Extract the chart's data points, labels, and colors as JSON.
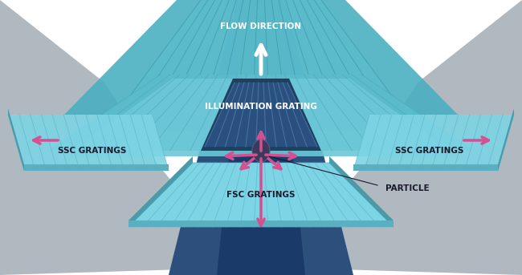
{
  "bg_color": "#ffffff",
  "gray_side_color": "#b0b8c0",
  "teal_layer_color": "#5bbccc",
  "teal_light_color": "#7dd4e0",
  "teal_grating_color": "#a8e0e8",
  "dark_blue_color": "#2a4a7a",
  "navy_color": "#2c4f7c",
  "pink_arrow_color": "#d45090",
  "white_arrow_color": "#ffffff",
  "particle_color": "#3a3a5c",
  "text_color": "#1a1a2e",
  "labels": {
    "fsc": "FSC GRATINGS",
    "ssc_left": "SSC GRATINGS",
    "ssc_right": "SSC GRATINGS",
    "illumination": "ILLUMINATION GRATING",
    "flow": "FLOW DIRECTION",
    "particle": "PARTICLE"
  },
  "figsize": [
    6.5,
    3.43
  ],
  "dpi": 100
}
